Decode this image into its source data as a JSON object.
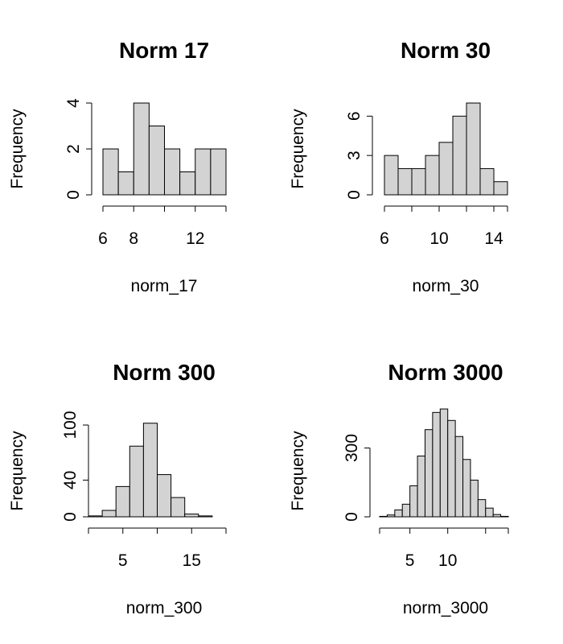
{
  "chart_data": [
    {
      "type": "bar",
      "title": "Norm 17",
      "xlabel": "norm_17",
      "ylabel": "Frequency",
      "bin_edges": [
        6,
        7,
        8,
        9,
        10,
        11,
        12,
        13,
        14
      ],
      "values": [
        2,
        1,
        4,
        3,
        2,
        1,
        2,
        2
      ],
      "xticks": [
        6,
        8,
        12
      ],
      "xlim": [
        6,
        14
      ],
      "yticks": [
        0,
        2,
        4
      ],
      "ylim": [
        0,
        4
      ]
    },
    {
      "type": "bar",
      "title": "Norm 30",
      "xlabel": "norm_30",
      "ylabel": "Frequency",
      "bin_edges": [
        6,
        7,
        8,
        9,
        10,
        11,
        12,
        13,
        14,
        15
      ],
      "values": [
        3,
        2,
        2,
        3,
        4,
        6,
        7,
        2,
        1
      ],
      "xticks": [
        6,
        10,
        14
      ],
      "xlim": [
        6,
        15
      ],
      "yticks": [
        0,
        3,
        6
      ],
      "ylim": [
        0,
        7
      ]
    },
    {
      "type": "bar",
      "title": "Norm 300",
      "xlabel": "norm_300",
      "ylabel": "Frequency",
      "bin_edges": [
        0,
        2,
        4,
        6,
        8,
        10,
        12,
        14,
        16,
        18,
        20
      ],
      "values": [
        1,
        7,
        33,
        77,
        102,
        46,
        21,
        3,
        1,
        0
      ],
      "xticks": [
        5,
        15
      ],
      "xlim": [
        0,
        20
      ],
      "yticks": [
        0,
        40,
        100
      ],
      "ylim": [
        0,
        100
      ]
    },
    {
      "type": "bar",
      "title": "Norm 3000",
      "xlabel": "norm_3000",
      "ylabel": "Frequency",
      "bin_edges": [
        1,
        2,
        3,
        4,
        5,
        6,
        7,
        8,
        9,
        10,
        11,
        12,
        13,
        14,
        15,
        16,
        17,
        18
      ],
      "values": [
        2,
        8,
        30,
        55,
        135,
        265,
        380,
        455,
        470,
        420,
        350,
        250,
        160,
        75,
        38,
        10,
        2
      ],
      "xticks": [
        5,
        10
      ],
      "xlim": [
        1,
        18
      ],
      "yticks": [
        0,
        300
      ],
      "ylim": [
        0,
        400
      ]
    }
  ]
}
